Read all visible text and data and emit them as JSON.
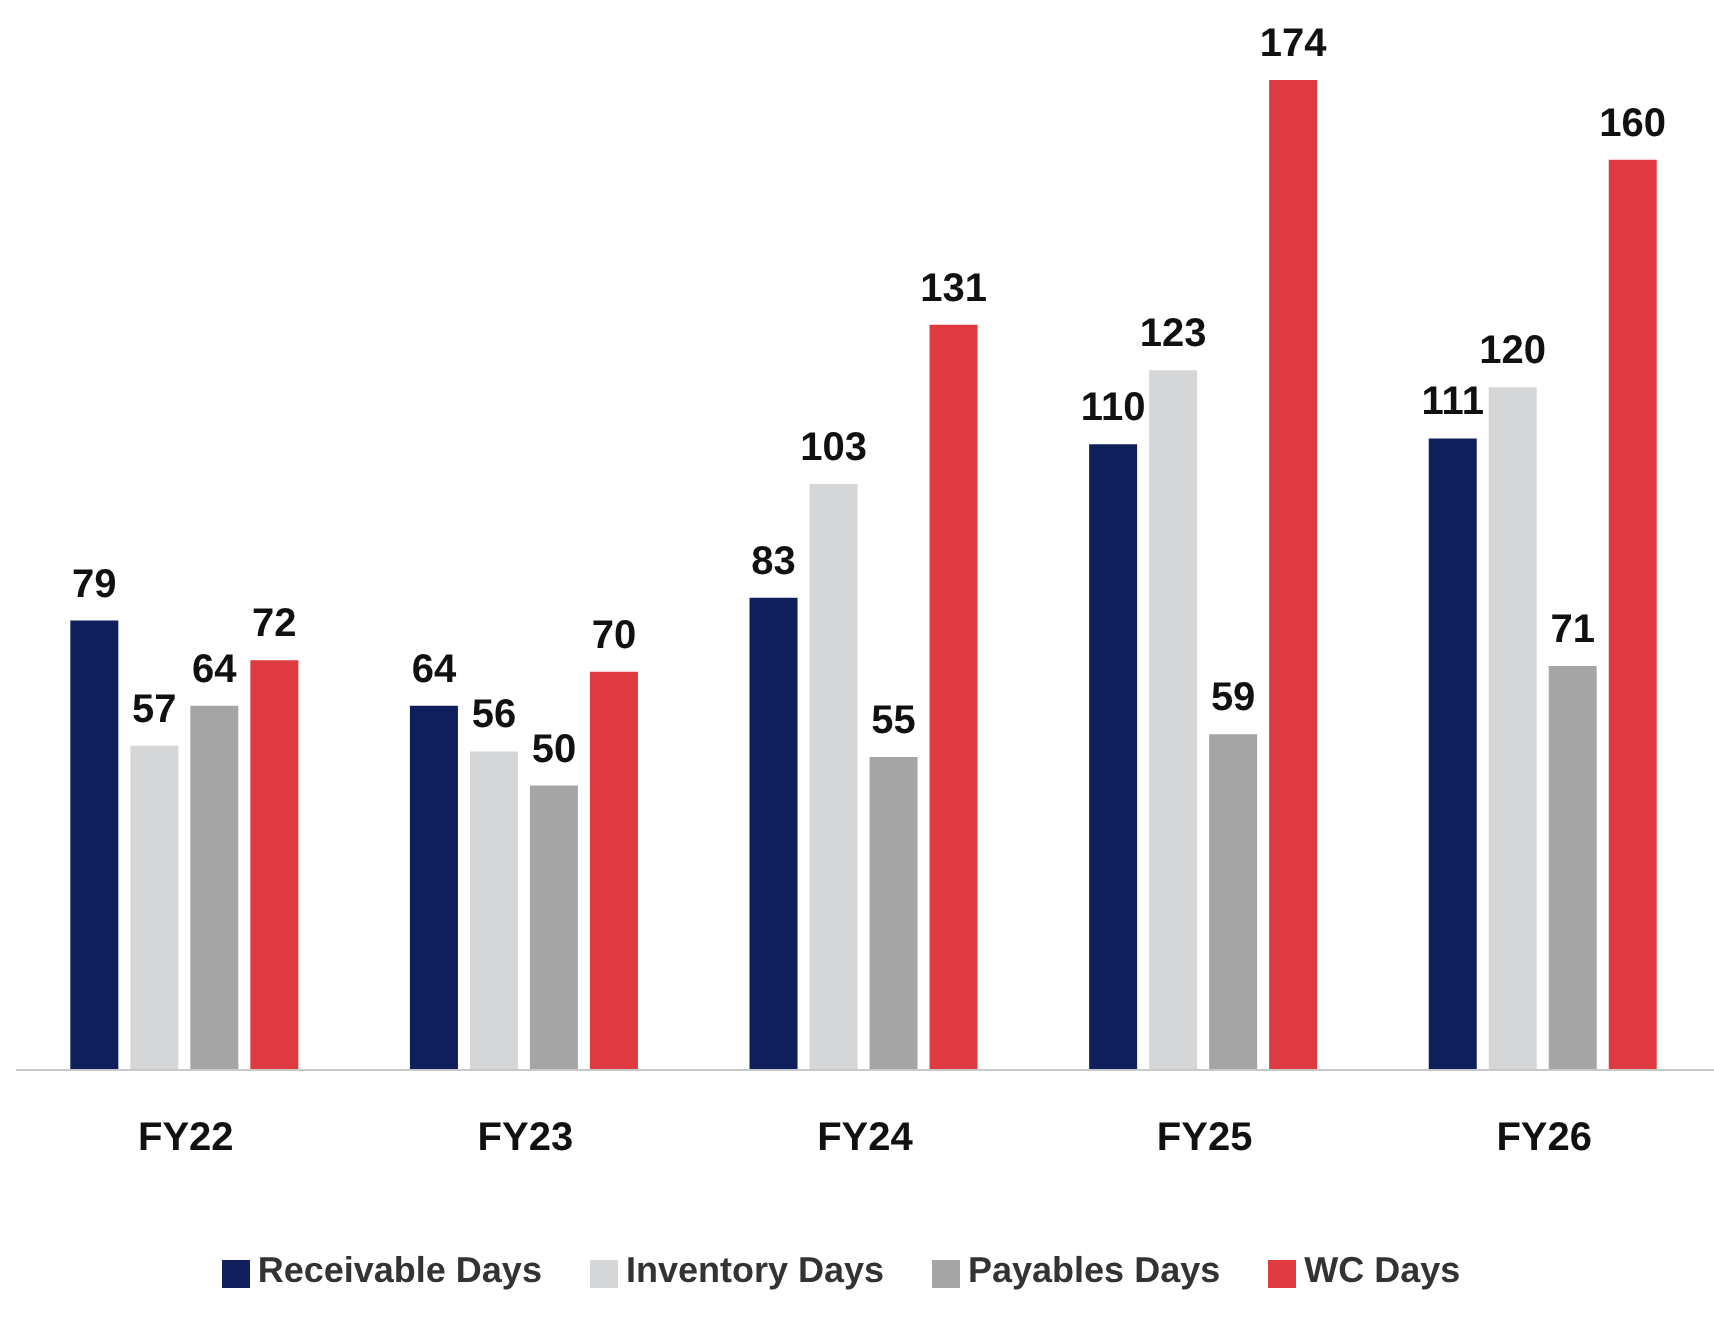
{
  "chart_data": {
    "type": "bar",
    "categories": [
      "FY22",
      "FY23",
      "FY24",
      "FY25",
      "FY26"
    ],
    "series": [
      {
        "name": "Receivable Days",
        "color": "#0e1f5b",
        "values": [
          79,
          64,
          83,
          110,
          111
        ]
      },
      {
        "name": "Inventory Days",
        "color": "#d5d6d8",
        "values": [
          57,
          56,
          103,
          123,
          120
        ]
      },
      {
        "name": "Payables Days",
        "color": "#a5a5a5",
        "values": [
          64,
          50,
          55,
          59,
          71
        ]
      },
      {
        "name": "WC Days",
        "color": "#de3a3f",
        "values": [
          72,
          70,
          131,
          174,
          160
        ]
      }
    ],
    "data_labels": true,
    "legend": "bottom",
    "grid": false,
    "tick_labels": "x"
  }
}
